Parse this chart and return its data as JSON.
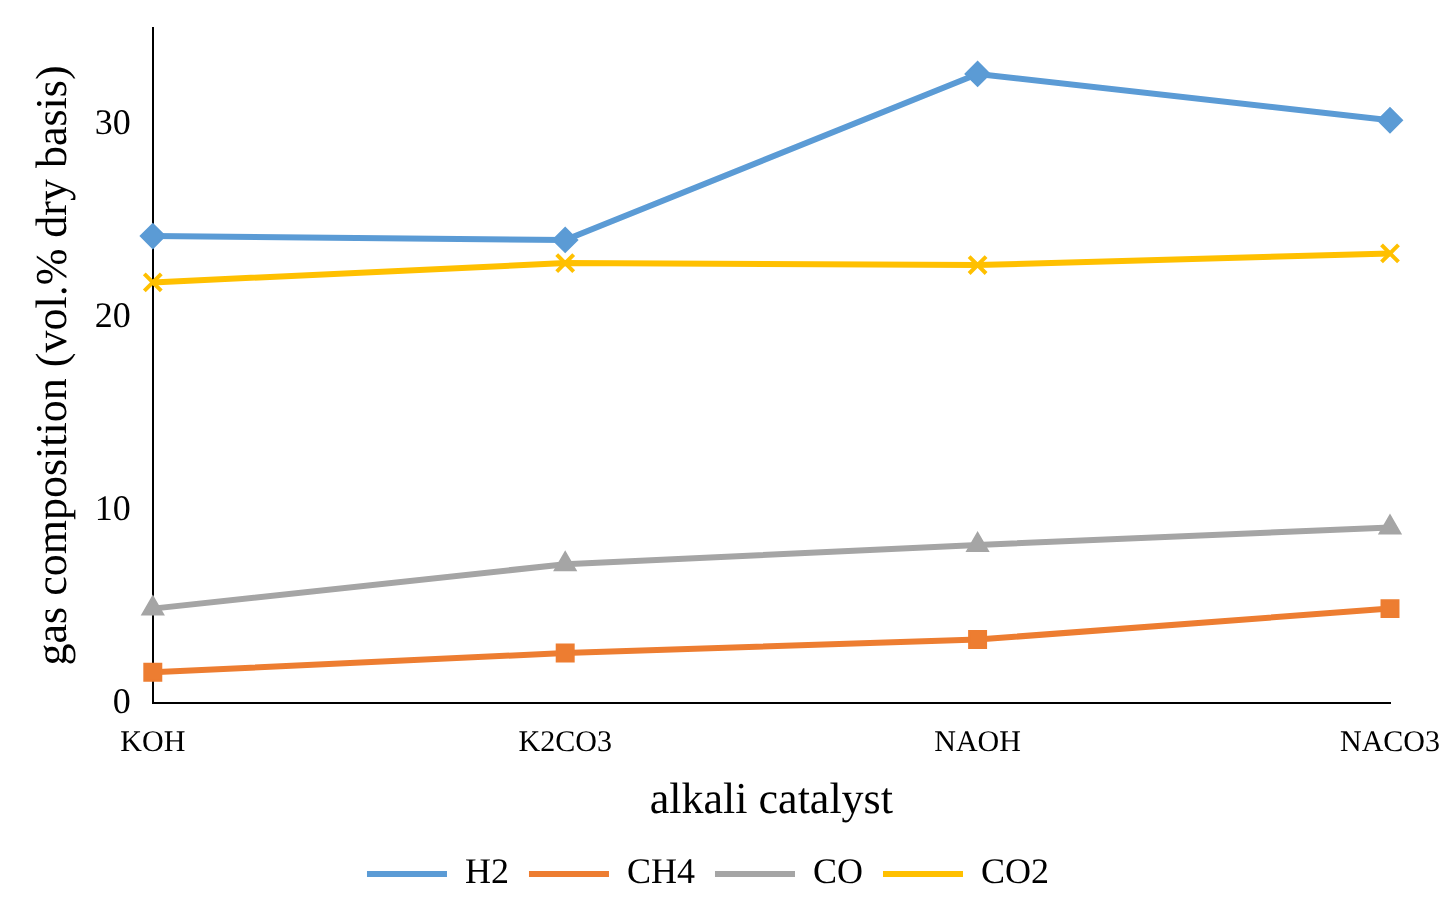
{
  "chart_data": {
    "type": "line",
    "xlabel": "alkali catalyst",
    "ylabel": "gas composition (vol.% dry basis)",
    "categories": [
      "KOH",
      "K2CO3",
      "NAOH",
      "NACO3"
    ],
    "series": [
      {
        "name": "H2",
        "color": "#5b9bd5",
        "marker": "diamond",
        "values": [
          24.2,
          24.0,
          32.6,
          30.2
        ]
      },
      {
        "name": "CH4",
        "color": "#ed7d31",
        "marker": "square",
        "values": [
          1.6,
          2.6,
          3.3,
          4.9
        ]
      },
      {
        "name": "CO",
        "color": "#a5a5a5",
        "marker": "triangle",
        "values": [
          4.9,
          7.2,
          8.2,
          9.1
        ]
      },
      {
        "name": "CO2",
        "color": "#ffc000",
        "marker": "cross",
        "values": [
          21.8,
          22.8,
          22.7,
          23.3
        ]
      }
    ],
    "ylim": [
      0,
      35
    ],
    "yticks": [
      0,
      10,
      20,
      30
    ],
    "grid": false,
    "legend": "bottom",
    "line_style": "solid"
  }
}
